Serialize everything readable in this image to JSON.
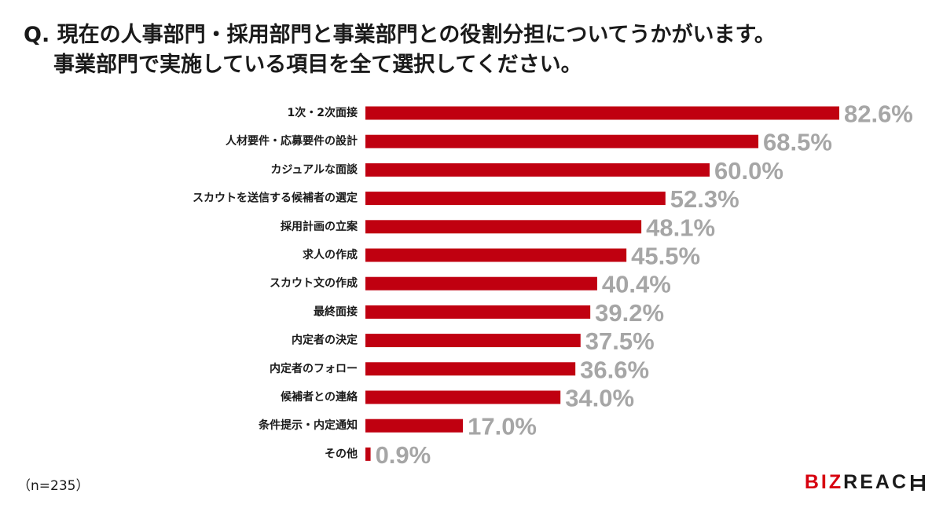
{
  "question": {
    "line1": "Q. 現在の人事部門・採用部門と事業部門との役割分担についてうかがいます。",
    "line2": "事業部門で実施している項目を全て選択してください。"
  },
  "sample_note": "（n=235）",
  "logo": {
    "biz": "BIZ",
    "reach": "REAC"
  },
  "colors": {
    "bar": "#c00010",
    "value_label": "#a6a6a6",
    "brand_red": "#d7000f"
  },
  "chart_data": {
    "type": "bar",
    "orientation": "horizontal",
    "categories": [
      "1次・2次面接",
      "人材要件・応募要件の設計",
      "カジュアルな面談",
      "スカウトを送信する候補者の選定",
      "採用計画の立案",
      "求人の作成",
      "スカウト文の作成",
      "最終面接",
      "内定者の決定",
      "内定者のフォロー",
      "候補者との連絡",
      "条件提示・内定通知",
      "その他"
    ],
    "values": [
      82.6,
      68.5,
      60.0,
      52.3,
      48.1,
      45.5,
      40.4,
      39.2,
      37.5,
      36.6,
      34.0,
      17.0,
      0.9
    ],
    "value_labels": [
      "82.6%",
      "68.5%",
      "60.0%",
      "52.3%",
      "48.1%",
      "45.5%",
      "40.4%",
      "39.2%",
      "37.5%",
      "36.6%",
      "34.0%",
      "17.0%",
      "0.9%"
    ],
    "unit": "%",
    "xlim": [
      0,
      100
    ],
    "grid": false,
    "legend": "none",
    "title": "",
    "xlabel": "",
    "ylabel": ""
  }
}
